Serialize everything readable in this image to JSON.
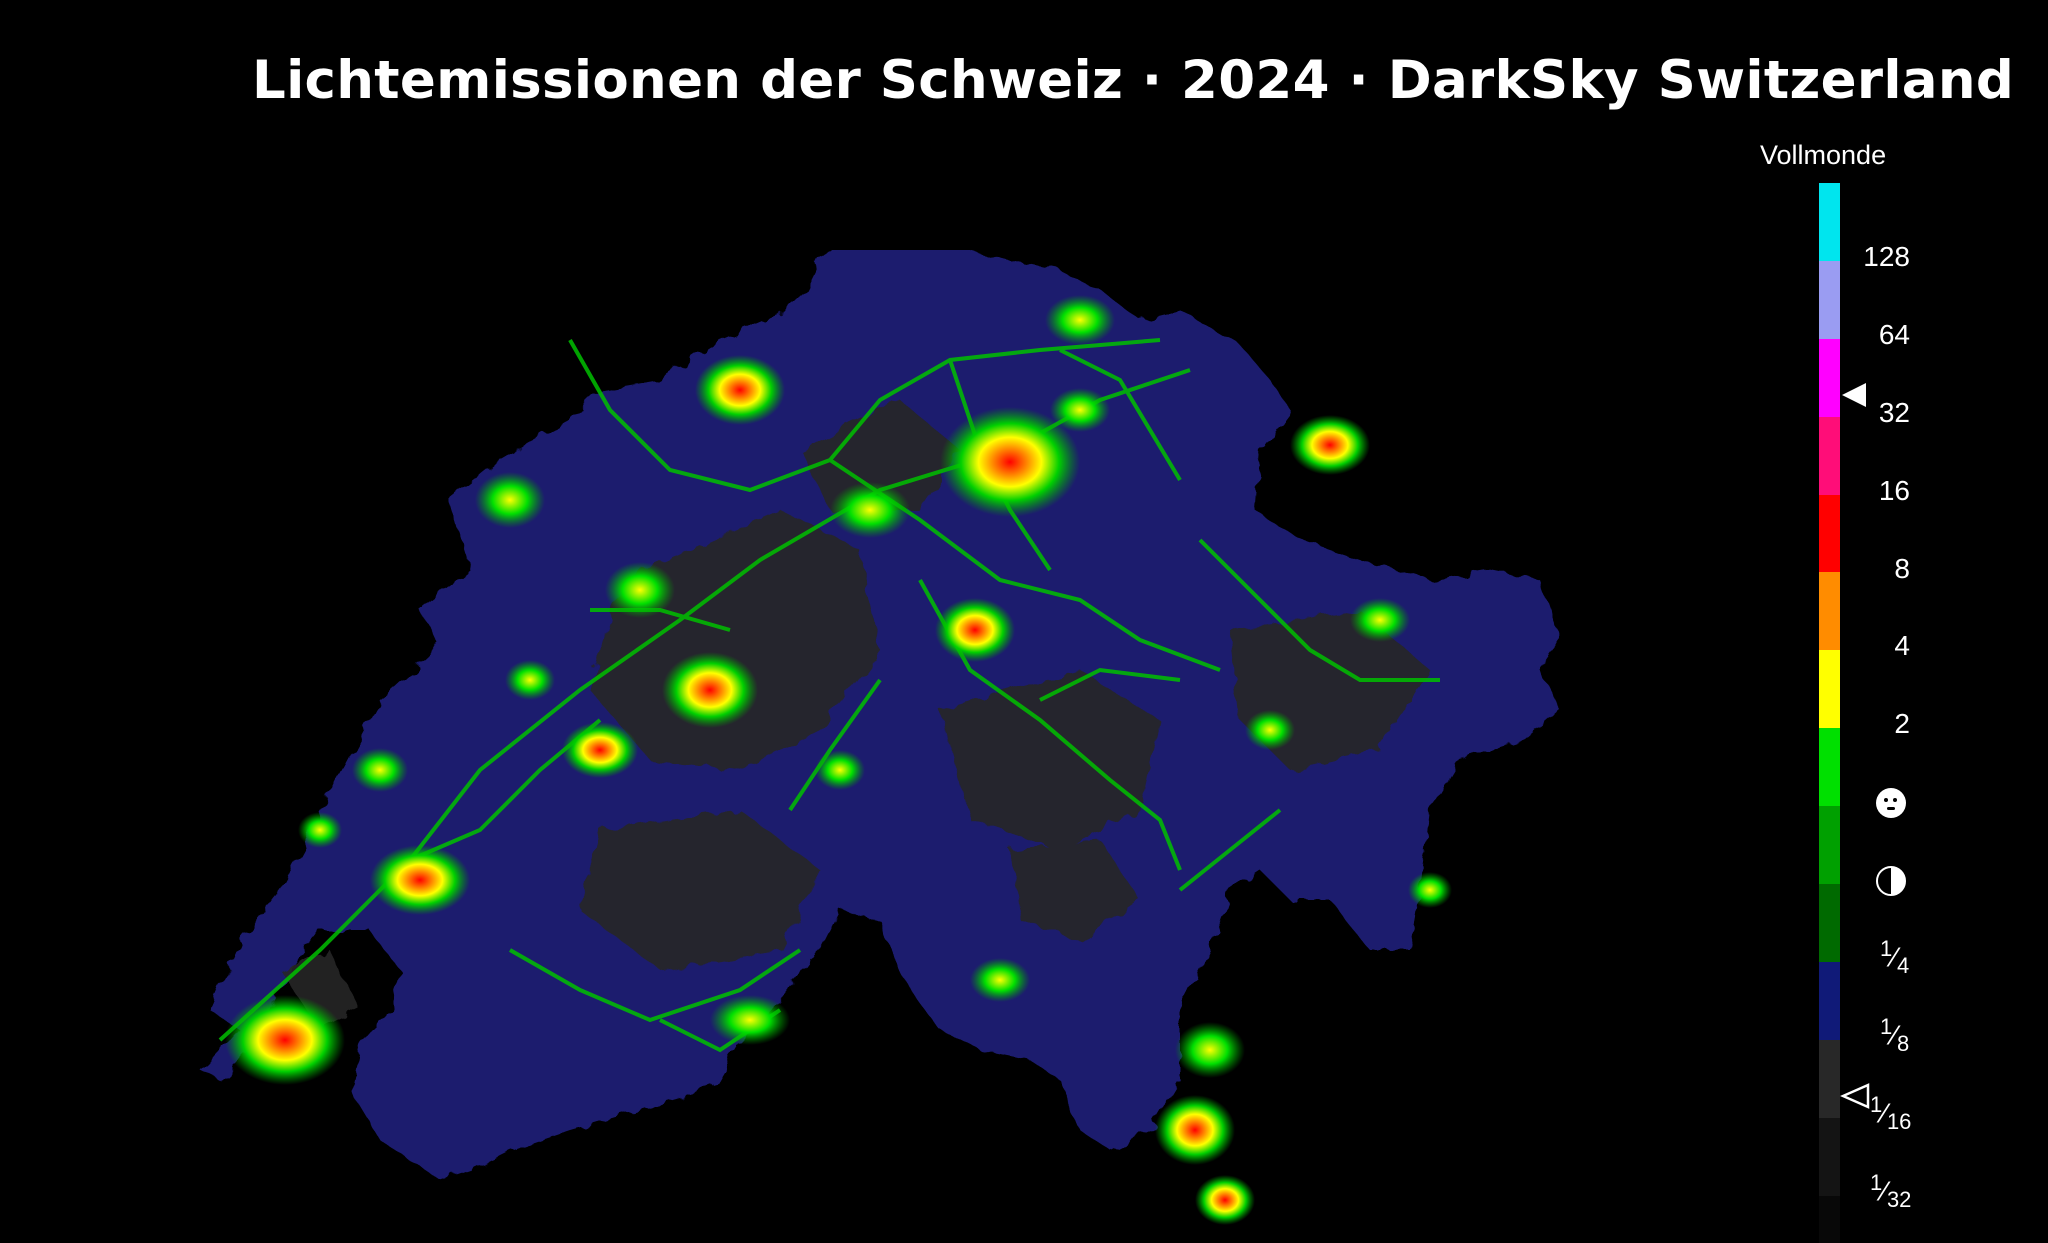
{
  "title": "Lichtemissionen der Schweiz · 2024 · DarkSky Switzerland",
  "legend": {
    "title": "Vollmonde",
    "swatches": [
      {
        "color": "#00e5ee"
      },
      {
        "color": "#9a9cf2"
      },
      {
        "color": "#ff00ff"
      },
      {
        "color": "#ff0d78"
      },
      {
        "color": "#ff0000"
      },
      {
        "color": "#ff8c00"
      },
      {
        "color": "#ffff00"
      },
      {
        "color": "#00e000"
      },
      {
        "color": "#00a000"
      },
      {
        "color": "#006a00"
      },
      {
        "color": "#101a78"
      },
      {
        "color": "#282828"
      },
      {
        "color": "#141414"
      },
      {
        "color": "#080808"
      }
    ],
    "ticks": [
      "128",
      "64",
      "32",
      "16",
      "8",
      "4",
      "2"
    ],
    "fractions": [
      {
        "num": "1",
        "den": "4"
      },
      {
        "num": "1",
        "den": "8"
      },
      {
        "num": "1",
        "den": "16"
      },
      {
        "num": "1",
        "den": "32"
      }
    ],
    "icons": [
      "full-moon-icon",
      "half-moon-icon"
    ],
    "markers": {
      "filled_near": "32",
      "hollow_near": "1/16"
    }
  },
  "colors": {
    "background": "#000000",
    "land_dark": "#262626",
    "land_blue": "#1b1d6e",
    "glow_green": "#00c800",
    "glow_yellow": "#ffff00",
    "glow_red": "#ff0000"
  }
}
